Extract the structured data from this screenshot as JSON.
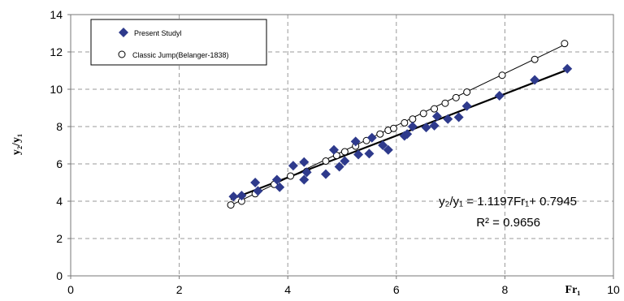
{
  "chart_data": {
    "type": "scatter",
    "xlabel": "Fr₁",
    "ylabel": "y₂/y₁",
    "xlim": [
      0,
      10
    ],
    "ylim": [
      0,
      14
    ],
    "x_ticks": [
      "0",
      "2",
      "4",
      "6",
      "8",
      "10"
    ],
    "y_ticks": [
      "0",
      "2",
      "4",
      "6",
      "8",
      "10",
      "12",
      "14"
    ],
    "grid": true,
    "legend_position": "top-left",
    "series": [
      {
        "name": "Present Studyl",
        "marker": "diamond",
        "color": "#2e3a8c",
        "points": [
          [
            3.0,
            4.25
          ],
          [
            3.15,
            4.3
          ],
          [
            3.4,
            5.0
          ],
          [
            3.45,
            4.55
          ],
          [
            3.8,
            5.15
          ],
          [
            3.85,
            4.75
          ],
          [
            4.1,
            5.9
          ],
          [
            4.3,
            6.1
          ],
          [
            4.3,
            5.15
          ],
          [
            4.35,
            5.55
          ],
          [
            4.7,
            5.45
          ],
          [
            4.85,
            6.75
          ],
          [
            4.95,
            5.85
          ],
          [
            5.05,
            6.15
          ],
          [
            5.25,
            7.2
          ],
          [
            5.3,
            6.5
          ],
          [
            5.5,
            6.55
          ],
          [
            5.55,
            7.4
          ],
          [
            5.75,
            7.0
          ],
          [
            5.85,
            6.75
          ],
          [
            6.15,
            7.5
          ],
          [
            6.2,
            7.6
          ],
          [
            6.3,
            8.0
          ],
          [
            6.55,
            7.95
          ],
          [
            6.7,
            8.05
          ],
          [
            6.75,
            8.55
          ],
          [
            6.95,
            8.4
          ],
          [
            7.15,
            8.5
          ],
          [
            7.3,
            9.1
          ],
          [
            7.9,
            9.65
          ],
          [
            8.55,
            10.5
          ],
          [
            9.15,
            11.1
          ]
        ]
      },
      {
        "name": "Classic Jump(Belanger-1838)",
        "marker": "open-circle",
        "color": "#000000",
        "points": [
          [
            2.95,
            3.8
          ],
          [
            3.15,
            4.0
          ],
          [
            3.4,
            4.4
          ],
          [
            3.75,
            4.9
          ],
          [
            4.05,
            5.35
          ],
          [
            4.35,
            5.6
          ],
          [
            4.7,
            6.15
          ],
          [
            4.9,
            6.45
          ],
          [
            5.05,
            6.65
          ],
          [
            5.25,
            6.95
          ],
          [
            5.45,
            7.25
          ],
          [
            5.7,
            7.6
          ],
          [
            5.85,
            7.8
          ],
          [
            5.95,
            7.9
          ],
          [
            6.15,
            8.2
          ],
          [
            6.3,
            8.4
          ],
          [
            6.5,
            8.7
          ],
          [
            6.7,
            8.95
          ],
          [
            6.9,
            9.25
          ],
          [
            7.1,
            9.55
          ],
          [
            7.3,
            9.85
          ],
          [
            7.95,
            10.75
          ],
          [
            8.55,
            11.6
          ],
          [
            9.1,
            12.45
          ]
        ]
      }
    ],
    "trendlines": [
      {
        "series": "Present Studyl",
        "slope": 1.1197,
        "intercept": 0.7945,
        "x_range": [
          2.95,
          9.15
        ]
      },
      {
        "series": "Classic Jump(Belanger-1838)",
        "slope": 1.4,
        "intercept": -0.35,
        "x_range": [
          2.95,
          9.1
        ]
      }
    ],
    "equation_label": "y₂/y₁ = 1.1197Fr₁+ 0.7945",
    "r2_label": "R² = 0.9656"
  }
}
